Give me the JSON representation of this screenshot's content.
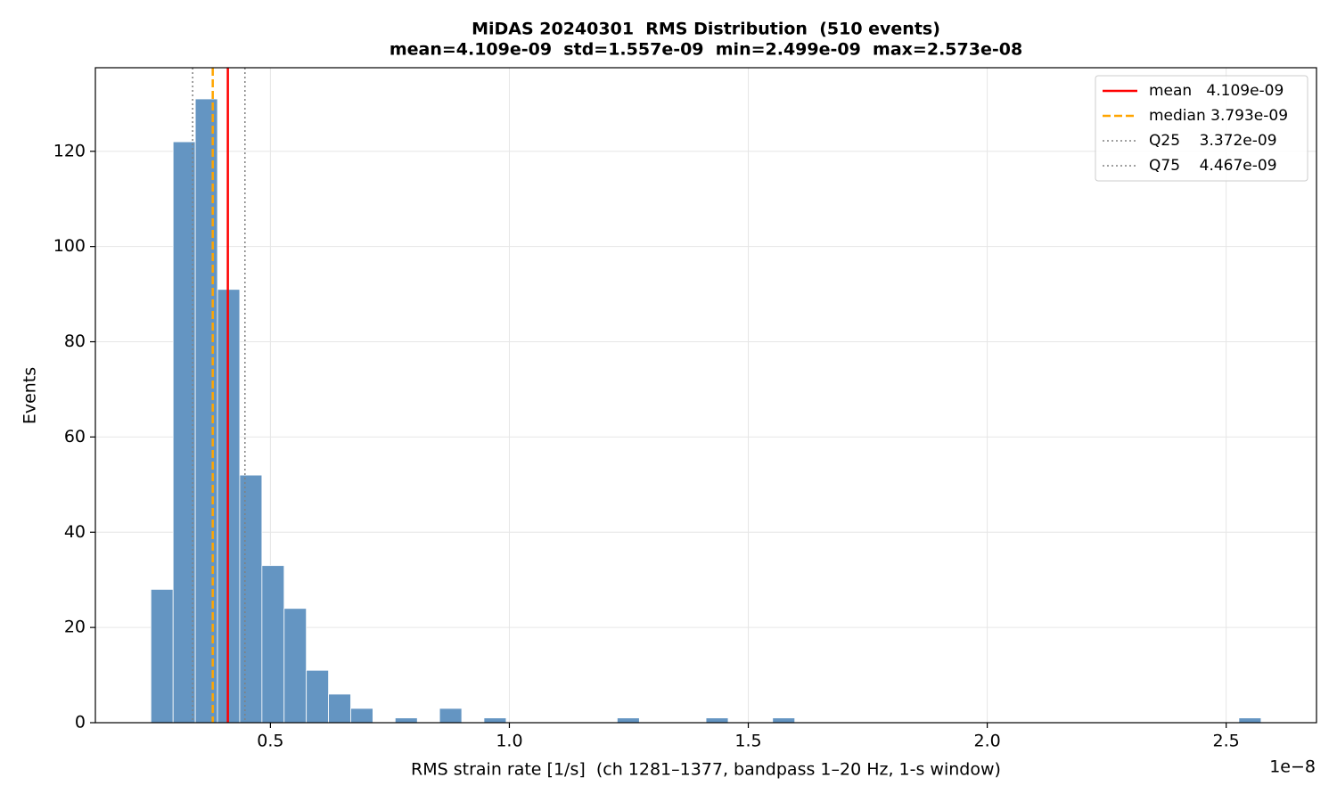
{
  "chart_data": {
    "type": "histogram",
    "title": "MiDAS 20240301  RMS Distribution  (510 events)",
    "subtitle": "mean=4.109e-09  std=1.557e-09  min=2.499e-09  max=2.573e-08",
    "x_label": "RMS strain rate [1/s]  (ch 1281–1377, bandpass 1–20 Hz, 1-s window)",
    "x_offset_label": "1e−8",
    "y_label": "Events",
    "color": "#6495c2",
    "bins": [
      2.499e-09,
      2.96362e-09,
      3.42824e-09,
      3.89286e-09,
      4.35748e-09,
      4.8221e-09,
      5.28672e-09,
      5.75134e-09,
      6.21596e-09,
      6.68058e-09,
      7.1452e-09,
      7.60982e-09,
      8.07444e-09,
      8.53906e-09,
      9.00368e-09,
      9.4683e-09,
      9.93292e-09,
      1.039754e-08,
      1.086216e-08,
      1.132678e-08,
      1.17914e-08,
      1.225602e-08,
      1.272064e-08,
      1.318526e-08,
      1.364988e-08,
      1.41145e-08,
      1.457912e-08,
      1.504374e-08,
      1.550836e-08,
      1.597298e-08,
      1.64376e-08,
      1.690222e-08,
      1.736684e-08,
      1.783146e-08,
      1.829608e-08,
      1.87607e-08,
      1.922532e-08,
      1.968994e-08,
      2.015456e-08,
      2.061918e-08,
      2.10838e-08,
      2.154842e-08,
      2.201304e-08,
      2.247766e-08,
      2.294228e-08,
      2.34069e-08,
      2.387152e-08,
      2.433614e-08,
      2.480076e-08,
      2.526538e-08,
      2.573e-08
    ],
    "values": [
      28,
      122,
      131,
      91,
      52,
      33,
      24,
      11,
      6,
      3,
      0,
      1,
      0,
      3,
      0,
      1,
      0,
      0,
      0,
      0,
      0,
      1,
      0,
      0,
      0,
      1,
      0,
      0,
      1,
      0,
      0,
      0,
      0,
      0,
      0,
      0,
      0,
      0,
      0,
      0,
      0,
      0,
      0,
      0,
      0,
      0,
      0,
      0,
      0,
      1
    ],
    "xlim": [
      1.337e-09,
      2.689e-08
    ],
    "xticks": [
      {
        "value": 5e-09,
        "label": "0.5"
      },
      {
        "value": 1e-08,
        "label": "1.0"
      },
      {
        "value": 1.5e-08,
        "label": "1.5"
      },
      {
        "value": 2e-08,
        "label": "2.0"
      },
      {
        "value": 2.5e-08,
        "label": "2.5"
      }
    ],
    "ylim": [
      0,
      137.55
    ],
    "yticks": [
      0,
      20,
      40,
      60,
      80,
      100,
      120
    ],
    "grid": true,
    "legend_position": "upper right",
    "reference_lines": [
      {
        "label": "mean   4.109e-09",
        "value": 4.109e-09,
        "color": "#ff0000",
        "style": "solid"
      },
      {
        "label": "median 3.793e-09",
        "value": 3.793e-09,
        "color": "#ffa500",
        "style": "dashed"
      },
      {
        "label": "Q25    3.372e-09",
        "value": 3.372e-09,
        "color": "#808080",
        "style": "dotted"
      },
      {
        "label": "Q75    4.467e-09",
        "value": 4.467e-09,
        "color": "#808080",
        "style": "dotted"
      }
    ]
  }
}
